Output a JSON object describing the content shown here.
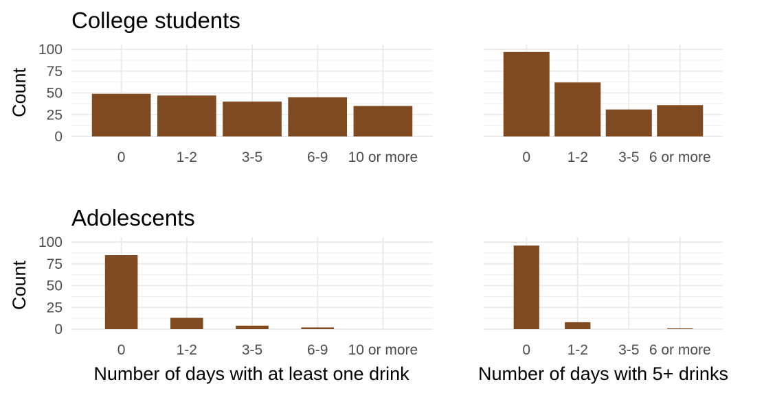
{
  "titles": {
    "top": "College students",
    "bottom": "Adolescents"
  },
  "y_label": "Count",
  "x_labels": {
    "left": "Number of days with at least one drink",
    "right": "Number of days with 5+ drinks"
  },
  "chart_data": [
    {
      "type": "bar",
      "title": "College students",
      "ylabel": "Count",
      "xlabel": "",
      "categories": [
        "0",
        "1-2",
        "3-5",
        "6-9",
        "10 or more"
      ],
      "values": [
        49,
        47,
        40,
        45,
        35
      ],
      "ylim": [
        0,
        100
      ],
      "yticks": [
        0,
        25,
        50,
        75,
        100
      ],
      "grid": true,
      "bar_color": "#7f4a1f"
    },
    {
      "type": "bar",
      "title": "",
      "ylabel": "",
      "xlabel": "",
      "categories": [
        "0",
        "1-2",
        "3-5",
        "6 or more"
      ],
      "values": [
        97,
        62,
        31,
        36
      ],
      "ylim": [
        0,
        100
      ],
      "grid": true,
      "bar_color": "#7f4a1f"
    },
    {
      "type": "bar",
      "title": "Adolescents",
      "ylabel": "Count",
      "xlabel": "Number of days with at least one drink",
      "categories": [
        "0",
        "1-2",
        "3-5",
        "6-9",
        "10 or more"
      ],
      "values": [
        85,
        13,
        4,
        2,
        0
      ],
      "ylim": [
        0,
        100
      ],
      "yticks": [
        0,
        25,
        50,
        75,
        100
      ],
      "grid": true,
      "bar_color": "#7f4a1f"
    },
    {
      "type": "bar",
      "title": "",
      "ylabel": "",
      "xlabel": "Number of days with 5+ drinks",
      "categories": [
        "0",
        "1-2",
        "3-5",
        "6 or more"
      ],
      "values": [
        96,
        8,
        0,
        1
      ],
      "ylim": [
        0,
        100
      ],
      "grid": true,
      "bar_color": "#7f4a1f"
    }
  ]
}
